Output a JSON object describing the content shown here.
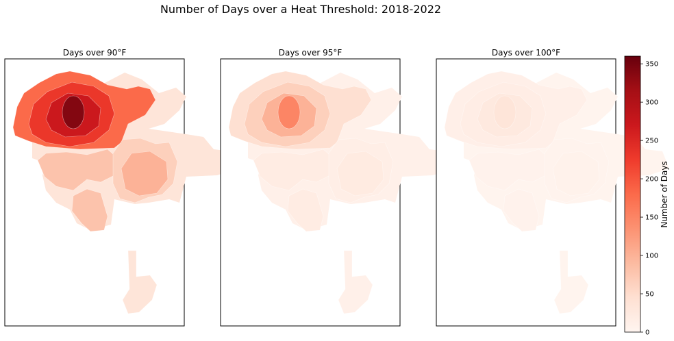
{
  "chart_data": {
    "type": "heatmap",
    "title": "Number of Days over a Heat Threshold: 2018-2022",
    "colormap": [
      "#fff5f0",
      "#fee0d2",
      "#fcbba1",
      "#fc9272",
      "#fb6a4a",
      "#ef3b2c",
      "#cb181d",
      "#a50f15",
      "#67000d"
    ],
    "colorbar": {
      "label": "Number of Days",
      "range": [
        0,
        360
      ],
      "ticks": [
        0,
        50,
        100,
        150,
        200,
        250,
        300,
        350
      ],
      "tick_labels": [
        "0",
        "50",
        "100",
        "150",
        "200",
        "250",
        "300",
        "350"
      ]
    },
    "panels": [
      {
        "title": "Days over 90°F",
        "regions": {
          "north_core": 340,
          "north_inner": 270,
          "north_ring": 230,
          "north_outer": 180,
          "central": 80,
          "east_core": 100,
          "east_outer": 65,
          "south": 35
        }
      },
      {
        "title": "Days over 95°F",
        "regions": {
          "north_core": 150,
          "north_inner": 100,
          "north_ring": 65,
          "north_outer": 45,
          "central": 20,
          "east_core": 22,
          "east_outer": 15,
          "south": 10
        }
      },
      {
        "title": "Days over 100°F",
        "regions": {
          "north_core": 35,
          "north_inner": 25,
          "north_ring": 17,
          "north_outer": 12,
          "central": 6,
          "east_core": 7,
          "east_outer": 5,
          "south": 3
        }
      }
    ]
  }
}
